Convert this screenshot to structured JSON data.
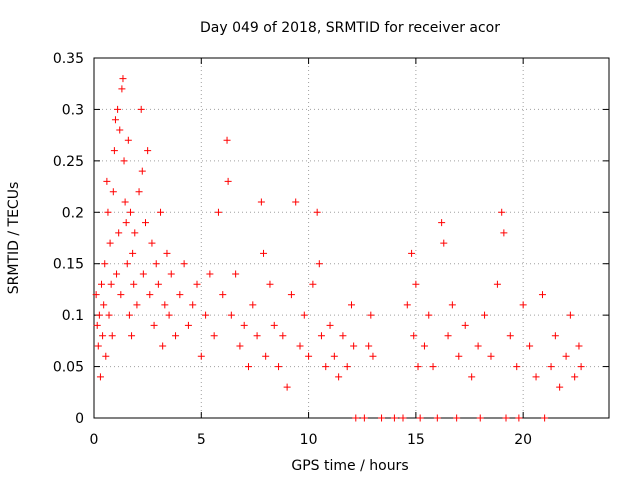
{
  "chart_data": {
    "type": "scatter",
    "title": "Day 049 of 2018, SRMTID for receiver acor",
    "xlabel": "GPS time / hours",
    "ylabel": "SRMTID / TECUs",
    "xlim": [
      0,
      24
    ],
    "ylim": [
      0,
      0.35
    ],
    "x_ticks": [
      0,
      5,
      10,
      15,
      20
    ],
    "x_tick_labels": [
      "0",
      "5",
      "10",
      "15",
      "20"
    ],
    "y_ticks": [
      0,
      0.05,
      0.1,
      0.15,
      0.2,
      0.25,
      0.3,
      0.35
    ],
    "y_tick_labels": [
      "0",
      "0.05",
      "0.1",
      "0.15",
      "0.2",
      "0.25",
      "0.3",
      "0.35"
    ],
    "grid": true,
    "marker": "plus",
    "series_color": "#ff0000",
    "series": [
      {
        "name": "SRMTID",
        "points": [
          [
            0.1,
            0.12
          ],
          [
            0.15,
            0.09
          ],
          [
            0.2,
            0.07
          ],
          [
            0.25,
            0.1
          ],
          [
            0.3,
            0.04
          ],
          [
            0.35,
            0.13
          ],
          [
            0.4,
            0.08
          ],
          [
            0.45,
            0.11
          ],
          [
            0.5,
            0.15
          ],
          [
            0.55,
            0.06
          ],
          [
            0.6,
            0.23
          ],
          [
            0.65,
            0.2
          ],
          [
            0.7,
            0.1
          ],
          [
            0.75,
            0.17
          ],
          [
            0.8,
            0.13
          ],
          [
            0.85,
            0.08
          ],
          [
            0.9,
            0.22
          ],
          [
            0.95,
            0.26
          ],
          [
            1.0,
            0.29
          ],
          [
            1.05,
            0.14
          ],
          [
            1.1,
            0.3
          ],
          [
            1.15,
            0.18
          ],
          [
            1.2,
            0.28
          ],
          [
            1.25,
            0.12
          ],
          [
            1.3,
            0.32
          ],
          [
            1.35,
            0.33
          ],
          [
            1.4,
            0.25
          ],
          [
            1.45,
            0.21
          ],
          [
            1.5,
            0.19
          ],
          [
            1.55,
            0.15
          ],
          [
            1.6,
            0.27
          ],
          [
            1.65,
            0.1
          ],
          [
            1.7,
            0.2
          ],
          [
            1.75,
            0.08
          ],
          [
            1.8,
            0.16
          ],
          [
            1.85,
            0.13
          ],
          [
            1.9,
            0.18
          ],
          [
            2.0,
            0.11
          ],
          [
            2.1,
            0.22
          ],
          [
            2.2,
            0.3
          ],
          [
            2.25,
            0.24
          ],
          [
            2.3,
            0.14
          ],
          [
            2.4,
            0.19
          ],
          [
            2.5,
            0.26
          ],
          [
            2.6,
            0.12
          ],
          [
            2.7,
            0.17
          ],
          [
            2.8,
            0.09
          ],
          [
            2.9,
            0.15
          ],
          [
            3.0,
            0.13
          ],
          [
            3.1,
            0.2
          ],
          [
            3.2,
            0.07
          ],
          [
            3.3,
            0.11
          ],
          [
            3.4,
            0.16
          ],
          [
            3.5,
            0.1
          ],
          [
            3.6,
            0.14
          ],
          [
            3.8,
            0.08
          ],
          [
            4.0,
            0.12
          ],
          [
            4.2,
            0.15
          ],
          [
            4.4,
            0.09
          ],
          [
            4.6,
            0.11
          ],
          [
            4.8,
            0.13
          ],
          [
            5.0,
            0.06
          ],
          [
            5.2,
            0.1
          ],
          [
            5.4,
            0.14
          ],
          [
            5.6,
            0.08
          ],
          [
            5.8,
            0.2
          ],
          [
            6.0,
            0.12
          ],
          [
            6.2,
            0.27
          ],
          [
            6.25,
            0.23
          ],
          [
            6.4,
            0.1
          ],
          [
            6.6,
            0.14
          ],
          [
            6.8,
            0.07
          ],
          [
            7.0,
            0.09
          ],
          [
            7.2,
            0.05
          ],
          [
            7.4,
            0.11
          ],
          [
            7.6,
            0.08
          ],
          [
            7.8,
            0.21
          ],
          [
            7.9,
            0.16
          ],
          [
            8.0,
            0.06
          ],
          [
            8.2,
            0.13
          ],
          [
            8.4,
            0.09
          ],
          [
            8.6,
            0.05
          ],
          [
            8.8,
            0.08
          ],
          [
            9.0,
            0.03
          ],
          [
            9.2,
            0.12
          ],
          [
            9.4,
            0.21
          ],
          [
            9.6,
            0.07
          ],
          [
            9.8,
            0.1
          ],
          [
            10.0,
            0.06
          ],
          [
            10.2,
            0.13
          ],
          [
            10.4,
            0.2
          ],
          [
            10.5,
            0.15
          ],
          [
            10.6,
            0.08
          ],
          [
            10.8,
            0.05
          ],
          [
            11.0,
            0.09
          ],
          [
            11.2,
            0.06
          ],
          [
            11.4,
            0.04
          ],
          [
            11.6,
            0.08
          ],
          [
            11.8,
            0.05
          ],
          [
            12.0,
            0.11
          ],
          [
            12.1,
            0.07
          ],
          [
            12.2,
            0.0
          ],
          [
            12.6,
            0.0
          ],
          [
            12.8,
            0.07
          ],
          [
            12.9,
            0.1
          ],
          [
            13.0,
            0.06
          ],
          [
            13.4,
            0.0
          ],
          [
            14.0,
            0.0
          ],
          [
            14.4,
            0.0
          ],
          [
            14.6,
            0.11
          ],
          [
            14.8,
            0.16
          ],
          [
            14.9,
            0.08
          ],
          [
            15.0,
            0.13
          ],
          [
            15.1,
            0.05
          ],
          [
            15.2,
            0.0
          ],
          [
            15.4,
            0.07
          ],
          [
            15.6,
            0.1
          ],
          [
            15.8,
            0.05
          ],
          [
            16.0,
            0.0
          ],
          [
            16.2,
            0.19
          ],
          [
            16.3,
            0.17
          ],
          [
            16.5,
            0.08
          ],
          [
            16.7,
            0.11
          ],
          [
            16.9,
            0.0
          ],
          [
            17.0,
            0.06
          ],
          [
            17.3,
            0.09
          ],
          [
            17.6,
            0.04
          ],
          [
            17.9,
            0.07
          ],
          [
            18.0,
            0.0
          ],
          [
            18.2,
            0.1
          ],
          [
            18.5,
            0.06
          ],
          [
            18.8,
            0.13
          ],
          [
            19.0,
            0.2
          ],
          [
            19.1,
            0.18
          ],
          [
            19.2,
            0.0
          ],
          [
            19.4,
            0.08
          ],
          [
            19.7,
            0.05
          ],
          [
            19.8,
            0.0
          ],
          [
            20.0,
            0.11
          ],
          [
            20.3,
            0.07
          ],
          [
            20.6,
            0.04
          ],
          [
            20.9,
            0.12
          ],
          [
            21.0,
            0.0
          ],
          [
            21.3,
            0.05
          ],
          [
            21.5,
            0.08
          ],
          [
            21.7,
            0.03
          ],
          [
            22.0,
            0.06
          ],
          [
            22.2,
            0.1
          ],
          [
            22.4,
            0.04
          ],
          [
            22.6,
            0.07
          ],
          [
            22.7,
            0.05
          ]
        ]
      }
    ]
  }
}
